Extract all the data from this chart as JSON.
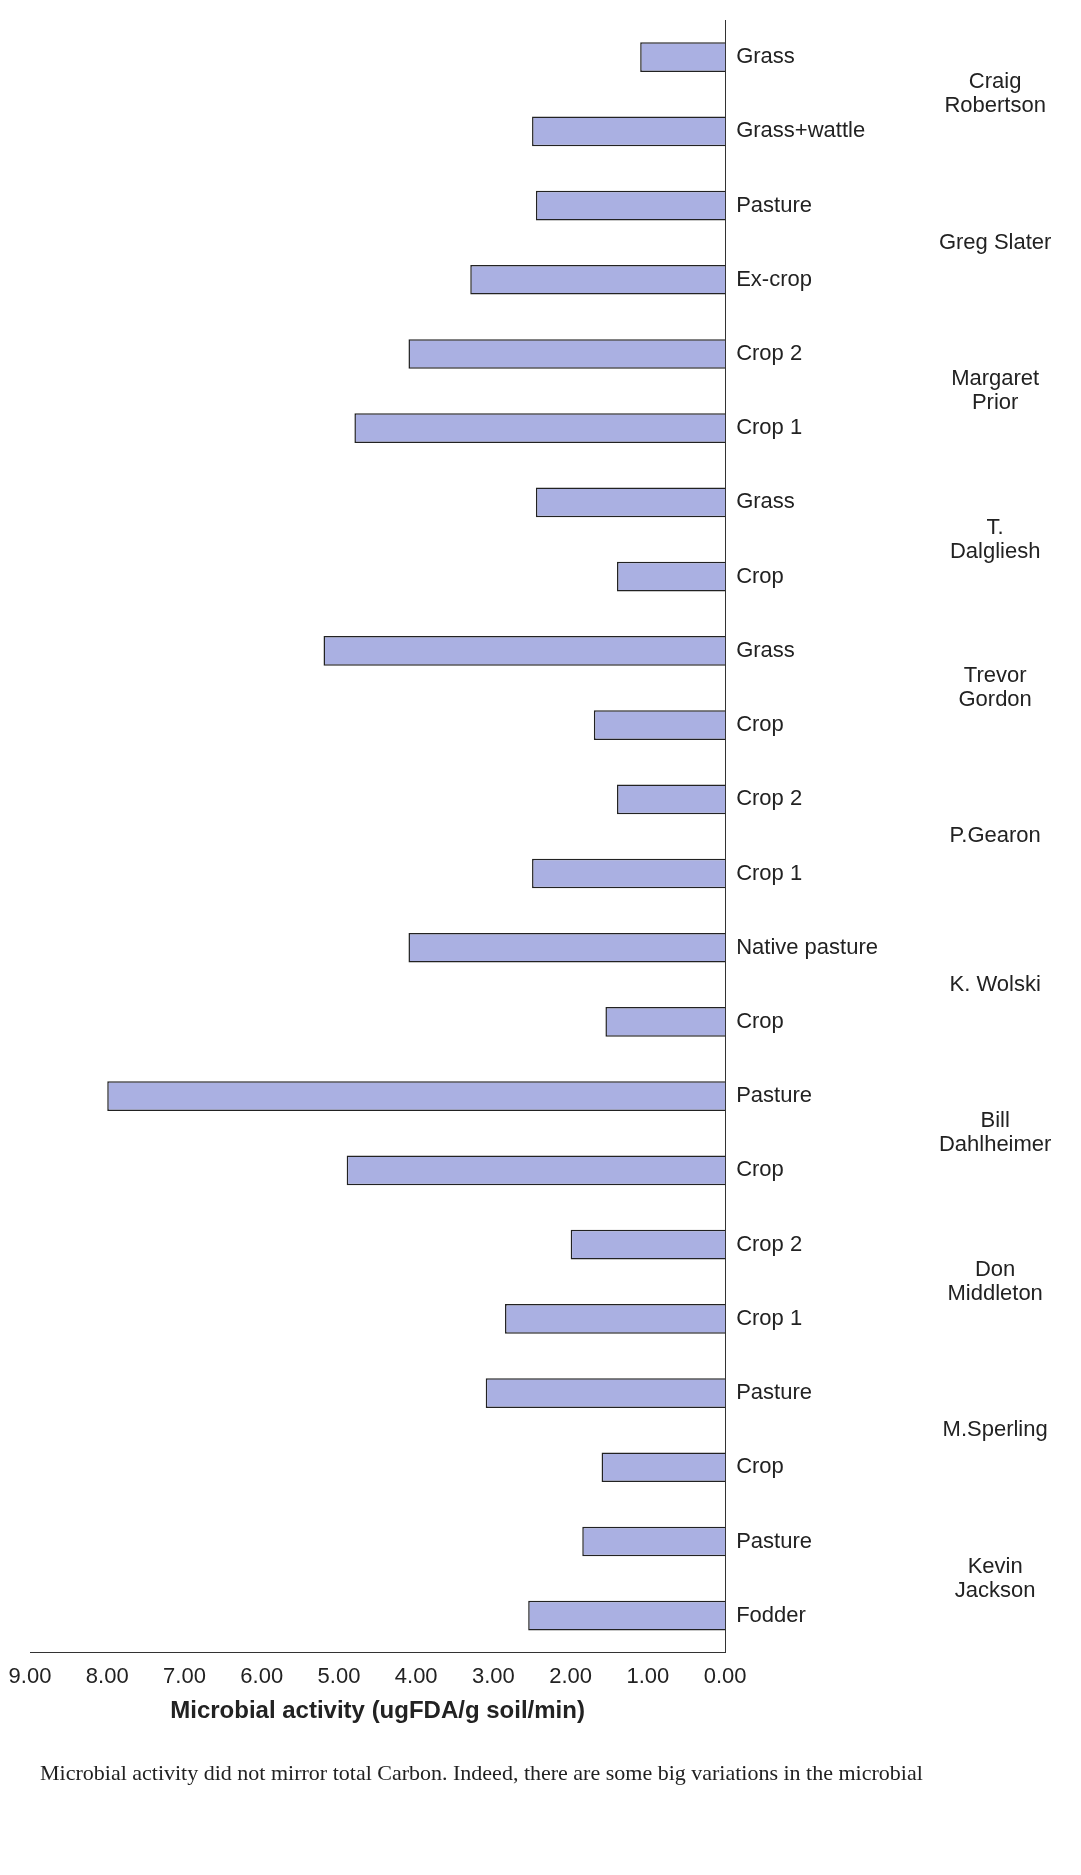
{
  "chart_data": {
    "type": "bar",
    "orientation": "horizontal",
    "xlabel": "Microbial activity (ugFDA/g soil/min)",
    "categories": [
      "Grass",
      "Grass+wattle",
      "Pasture",
      "Ex-crop",
      "Crop 2",
      "Crop 1",
      "Grass",
      "Crop",
      "Grass",
      "Crop",
      "Crop 2",
      "Crop 1",
      "Native pasture",
      "Crop",
      "Pasture",
      "Crop",
      "Crop 2",
      "Crop 1",
      "Pasture",
      "Crop",
      "Pasture",
      "Fodder"
    ],
    "values": [
      1.1,
      2.5,
      2.45,
      3.3,
      4.1,
      4.8,
      2.45,
      1.4,
      5.2,
      1.7,
      1.4,
      2.5,
      4.1,
      1.55,
      8.0,
      4.9,
      2.0,
      2.85,
      3.1,
      1.6,
      1.85,
      2.55
    ],
    "color": "#aab0e2",
    "xlim": [
      9,
      0
    ],
    "xticks": [
      {
        "value": 9,
        "label": "9.00"
      },
      {
        "value": 8,
        "label": "8.00"
      },
      {
        "value": 7,
        "label": "7.00"
      },
      {
        "value": 6,
        "label": "6.00"
      },
      {
        "value": 5,
        "label": "5.00"
      },
      {
        "value": 4,
        "label": "4.00"
      },
      {
        "value": 3,
        "label": "3.00"
      },
      {
        "value": 2,
        "label": "2.00"
      },
      {
        "value": 1,
        "label": "1.00"
      },
      {
        "value": 0,
        "label": "0.00"
      }
    ],
    "grid": false,
    "legend": false,
    "annotations": [
      "Craig Robertson",
      "Greg Slater",
      "Margaret Prior",
      "T. Dalgliesh",
      "Trevor Gordon",
      "P.Gearon",
      "K. Wolski",
      "Bill Dahlheimer",
      "Don Middleton",
      "M.Sperling",
      "Kevin Jackson",
      "Microbial activity did not mirror total Carbon. Indeed, there are some big variations in the microbial"
    ]
  }
}
